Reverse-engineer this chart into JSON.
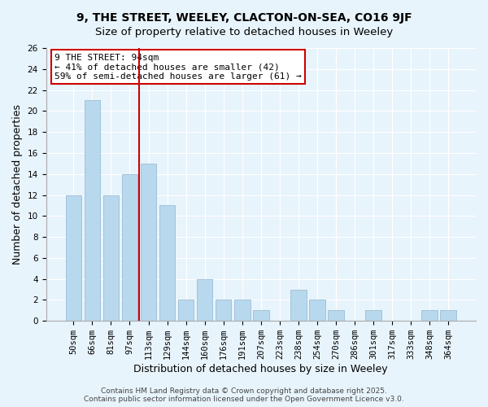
{
  "title": "9, THE STREET, WEELEY, CLACTON-ON-SEA, CO16 9JF",
  "subtitle": "Size of property relative to detached houses in Weeley",
  "xlabel": "Distribution of detached houses by size in Weeley",
  "ylabel": "Number of detached properties",
  "background_color": "#e8f4fc",
  "bar_color": "#b8d8ed",
  "bar_edge_color": "#9bbdd6",
  "categories": [
    "50sqm",
    "66sqm",
    "81sqm",
    "97sqm",
    "113sqm",
    "129sqm",
    "144sqm",
    "160sqm",
    "176sqm",
    "191sqm",
    "207sqm",
    "223sqm",
    "238sqm",
    "254sqm",
    "270sqm",
    "286sqm",
    "301sqm",
    "317sqm",
    "333sqm",
    "348sqm",
    "364sqm"
  ],
  "values": [
    12,
    21,
    12,
    14,
    15,
    11,
    2,
    4,
    2,
    2,
    1,
    0,
    3,
    2,
    1,
    0,
    1,
    0,
    0,
    1,
    1
  ],
  "ylim": [
    0,
    26
  ],
  "yticks": [
    0,
    2,
    4,
    6,
    8,
    10,
    12,
    14,
    16,
    18,
    20,
    22,
    24,
    26
  ],
  "vline_index": 3.5,
  "vline_color": "#cc0000",
  "annotation_title": "9 THE STREET: 94sqm",
  "annotation_line1": "← 41% of detached houses are smaller (42)",
  "annotation_line2": "59% of semi-detached houses are larger (61) →",
  "annotation_box_color": "#ffffff",
  "annotation_box_edge": "#cc0000",
  "footer1": "Contains HM Land Registry data © Crown copyright and database right 2025.",
  "footer2": "Contains public sector information licensed under the Open Government Licence v3.0.",
  "title_fontsize": 10,
  "subtitle_fontsize": 9.5,
  "axis_label_fontsize": 9,
  "tick_fontsize": 7.5,
  "annotation_fontsize": 8,
  "footer_fontsize": 6.5
}
